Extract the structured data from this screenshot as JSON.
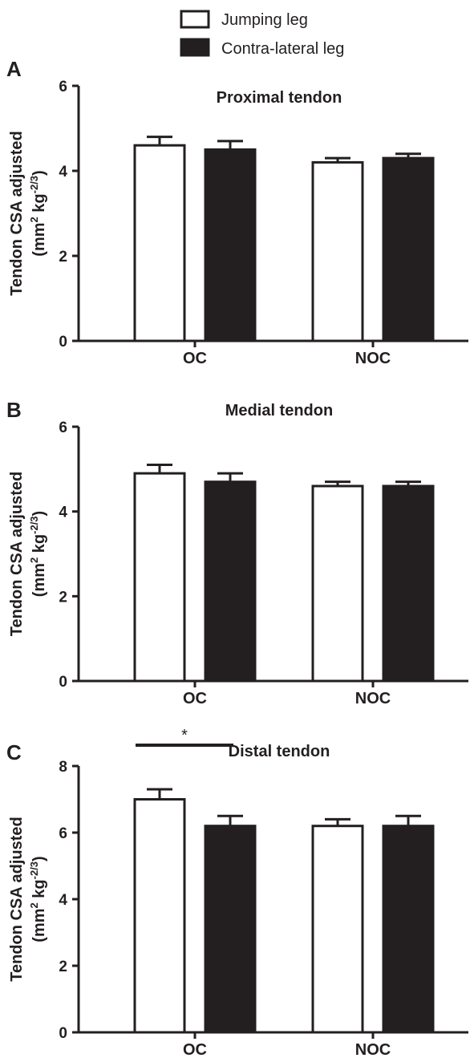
{
  "legend": [
    {
      "label": "Jumping leg",
      "fill": "#ffffff"
    },
    {
      "label": "Contra-lateral leg",
      "fill": "#231f20"
    }
  ],
  "ylabel_line1": "Tendon CSA adjusted",
  "ylabel_line2_prefix": "(mm",
  "ylabel_sup1": "2",
  "ylabel_mid": " kg",
  "ylabel_sup2": "-2/3",
  "ylabel_suffix": ")",
  "colors": {
    "ink": "#231f20",
    "background": "#ffffff"
  },
  "chart_data": [
    {
      "type": "bar",
      "panel": "A",
      "title": "Proximal tendon",
      "categories": [
        "OC",
        "NOC"
      ],
      "ylim": [
        0,
        6
      ],
      "yticks": [
        "0",
        "2",
        "4",
        "6"
      ],
      "series": [
        {
          "name": "Jumping leg",
          "values": [
            4.6,
            4.2
          ],
          "errors": [
            0.2,
            0.1
          ]
        },
        {
          "name": "Contra-lateral leg",
          "values": [
            4.5,
            4.3
          ],
          "errors": [
            0.2,
            0.1
          ]
        }
      ],
      "annotations": []
    },
    {
      "type": "bar",
      "panel": "B",
      "title": "Medial tendon",
      "categories": [
        "OC",
        "NOC"
      ],
      "ylim": [
        0,
        6
      ],
      "yticks": [
        "0",
        "2",
        "4",
        "6"
      ],
      "series": [
        {
          "name": "Jumping leg",
          "values": [
            4.9,
            4.6
          ],
          "errors": [
            0.2,
            0.1
          ]
        },
        {
          "name": "Contra-lateral leg",
          "values": [
            4.7,
            4.6
          ],
          "errors": [
            0.2,
            0.1
          ]
        }
      ],
      "annotations": []
    },
    {
      "type": "bar",
      "panel": "C",
      "title": "Distal tendon",
      "categories": [
        "OC",
        "NOC"
      ],
      "ylim": [
        0,
        8
      ],
      "yticks": [
        "0",
        "2",
        "4",
        "6",
        "8"
      ],
      "series": [
        {
          "name": "Jumping leg",
          "values": [
            7.0,
            6.2
          ],
          "errors": [
            0.3,
            0.2
          ]
        },
        {
          "name": "Contra-lateral leg",
          "values": [
            6.2,
            6.2
          ],
          "errors": [
            0.3,
            0.3
          ]
        }
      ],
      "annotations": [
        {
          "text": "*",
          "between": [
            "OC Jumping leg",
            "OC Contra-lateral leg"
          ]
        }
      ]
    }
  ]
}
